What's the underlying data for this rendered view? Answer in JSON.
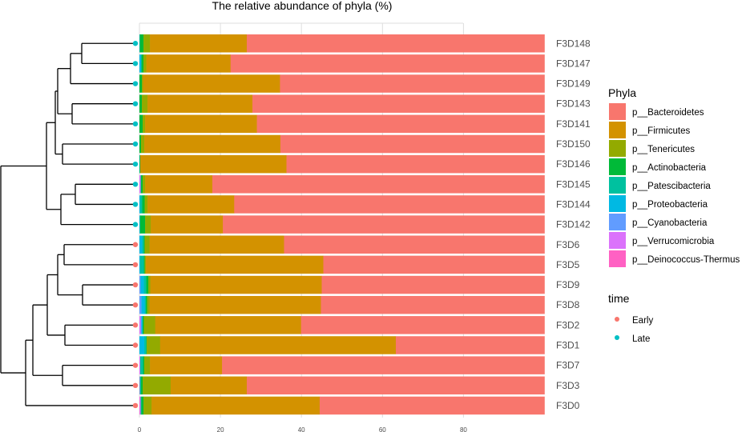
{
  "chart_data": {
    "type": "bar",
    "orientation": "horizontal",
    "stacked": true,
    "title": "The relative abundance of phyla (%)",
    "xlabel": "",
    "ylabel": "",
    "xlim": [
      0,
      100
    ],
    "x_ticks": [
      0,
      20,
      40,
      60,
      80
    ],
    "grid": true,
    "legend_position": "right",
    "categories": [
      "F3D148",
      "F3D147",
      "F3D149",
      "F3D143",
      "F3D141",
      "F3D150",
      "F3D146",
      "F3D145",
      "F3D144",
      "F3D142",
      "F3D6",
      "F3D5",
      "F3D9",
      "F3D8",
      "F3D2",
      "F3D1",
      "F3D7",
      "F3D3",
      "F3D0"
    ],
    "time": [
      "Late",
      "Late",
      "Late",
      "Late",
      "Late",
      "Late",
      "Late",
      "Late",
      "Late",
      "Late",
      "Early",
      "Early",
      "Early",
      "Early",
      "Early",
      "Early",
      "Early",
      "Early",
      "Early"
    ],
    "series": [
      {
        "name": "p__Deinococcus-Thermus",
        "color": "#FF61C3",
        "values": [
          0,
          0,
          0,
          0,
          0,
          0,
          0,
          0,
          0,
          0,
          0,
          0,
          0,
          0,
          0,
          0,
          0,
          0,
          0.1
        ]
      },
      {
        "name": "p__Verrucomicrobia",
        "color": "#DB72FB",
        "values": [
          0,
          0,
          0,
          0,
          0,
          0,
          0,
          0.3,
          0,
          0,
          0,
          0,
          0,
          0,
          0.3,
          0,
          0.2,
          0.1,
          0.2
        ]
      },
      {
        "name": "p__Cyanobacteria",
        "color": "#619CFF",
        "values": [
          0,
          0,
          0,
          0,
          0,
          0,
          0,
          0,
          0,
          0,
          0,
          0,
          0.3,
          0.5,
          0.2,
          0,
          0,
          0,
          0
        ]
      },
      {
        "name": "p__Proteobacteria",
        "color": "#00B9E3",
        "values": [
          0.1,
          0.5,
          0,
          0,
          0,
          0,
          0,
          0,
          0.2,
          0.1,
          0.7,
          0.2,
          0.8,
          0.8,
          0.3,
          1.2,
          0,
          0,
          0
        ]
      },
      {
        "name": "p__Patescibacteria",
        "color": "#00C19F",
        "values": [
          0,
          0,
          0,
          0,
          0,
          0,
          0.1,
          0.1,
          0.5,
          0.1,
          0.4,
          0.9,
          0.6,
          0.3,
          0,
          0.5,
          0.7,
          0.3,
          0.2
        ]
      },
      {
        "name": "p__Actinobacteria",
        "color": "#00BA38",
        "values": [
          0.9,
          0.5,
          0.6,
          0.6,
          0.8,
          0.4,
          0.1,
          0.4,
          0.6,
          1.2,
          0.2,
          0.2,
          0.5,
          0.3,
          0.3,
          0.1,
          0.3,
          0.4,
          0.5
        ]
      },
      {
        "name": "p__Tenericutes",
        "color": "#93AA00",
        "values": [
          1.6,
          0.7,
          0.3,
          1.4,
          0.6,
          0.8,
          0,
          0.6,
          0.7,
          1.4,
          1.2,
          0.3,
          0.5,
          0.6,
          2.8,
          3.3,
          1.4,
          6.9,
          2
        ]
      },
      {
        "name": "p__Firmicutes",
        "color": "#D39200",
        "values": [
          23.9,
          20.8,
          33.8,
          25.9,
          27.6,
          33.6,
          36.1,
          16.6,
          21.4,
          17.8,
          33.2,
          43.8,
          42.3,
          42.3,
          36,
          58.2,
          17.8,
          18.8,
          41.5
        ]
      },
      {
        "name": "p__Bacteroidetes",
        "color": "#F8766D",
        "values": [
          73.5,
          77.5,
          65.3,
          72.1,
          71,
          65.2,
          63.7,
          82,
          76.6,
          79.4,
          64.3,
          54.6,
          55,
          55.2,
          60.1,
          36.7,
          79.6,
          73.5,
          55.5
        ]
      }
    ],
    "legend": {
      "fill_title": "Phyla",
      "fill_entries": [
        "p__Bacteroidetes",
        "p__Firmicutes",
        "p__Tenericutes",
        "p__Actinobacteria",
        "p__Patescibacteria",
        "p__Proteobacteria",
        "p__Cyanobacteria",
        "p__Verrucomicrobia",
        "p__Deinococcus-Thermus"
      ],
      "fill_colors": [
        "#F8766D",
        "#D39200",
        "#93AA00",
        "#00BA38",
        "#00C19F",
        "#00B9E3",
        "#619CFF",
        "#DB72FB",
        "#FF61C3"
      ],
      "time_title": "time",
      "time_entries": [
        "Early",
        "Late"
      ],
      "time_colors": [
        "#F8766D",
        "#00BFC4"
      ]
    },
    "dendrogram_color": "#000000"
  }
}
